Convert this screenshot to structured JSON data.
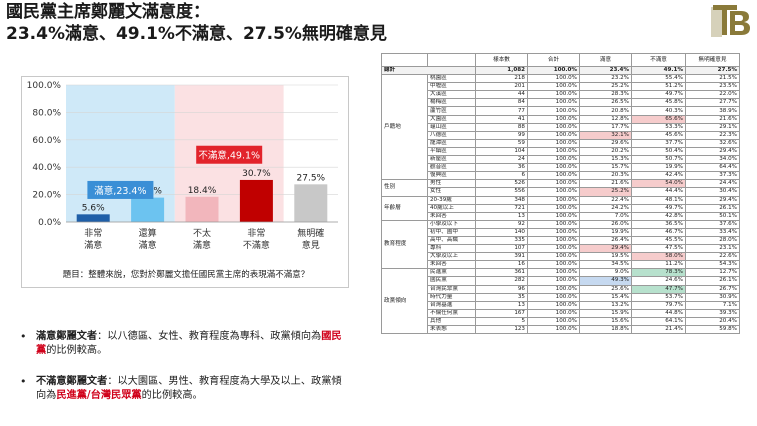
{
  "header": {
    "title_line1": "國民黨主席鄭麗文滿意度：",
    "title_line2": "23.4%滿意、49.1%不滿意、27.5%無明確意見"
  },
  "logo": {
    "text": "TB",
    "color": "#8a7a3a"
  },
  "chart_data": {
    "type": "bar",
    "categories": [
      "非常\n滿意",
      "還算\n滿意",
      "不太\n滿意",
      "非常\n不滿意",
      "無明確\n意見"
    ],
    "values": [
      5.6,
      17.8,
      18.4,
      30.7,
      27.5
    ],
    "value_labels": [
      "5.6%",
      "17.8%",
      "18.4%",
      "30.7%",
      "27.5%"
    ],
    "colors": [
      "#1f5fa8",
      "#6cc3f0",
      "#f2b6bc",
      "#c00000",
      "#c8c8c8"
    ],
    "ylim": [
      0,
      100
    ],
    "yticks": [
      "0.0%",
      "20.0%",
      "40.0%",
      "60.0%",
      "80.0%",
      "100.0%"
    ],
    "ytick_values": [
      0,
      20,
      40,
      60,
      80,
      100
    ],
    "groups": [
      {
        "label": "滿意,23.4%",
        "value": 23.4,
        "span": [
          0,
          1
        ],
        "bg": "#cfe9f8",
        "label_bg": "#3a8fd6"
      },
      {
        "label": "不滿意,49.1%",
        "value": 49.1,
        "span": [
          2,
          3
        ],
        "bg": "#fbe1e3",
        "label_bg": "#e2232b"
      }
    ],
    "question": "題目：整體來說，您對於鄭麗文擔任國民黨主席的表現滿不滿意？"
  },
  "bullets": [
    {
      "head": "滿意鄭麗文者",
      "text_a": "：以八德區、女性、教育程度為專科、政黨傾向為",
      "emph": "國民黨",
      "text_b": "的比例較高。"
    },
    {
      "head": "不滿意鄭麗文者",
      "text_a": "：以大園區、男性、教育程度為大學及以上、政黨傾向為",
      "emph": "民進黨/台灣民眾黨",
      "text_b": "的比例較高。"
    }
  ],
  "table": {
    "headers": [
      "",
      "",
      "樣本數",
      "合計",
      "滿意",
      "不滿意",
      "無明確意見"
    ],
    "total": {
      "label": "總計",
      "values": [
        "1,082",
        "100.0%",
        "23.4%",
        "49.1%",
        "27.5%"
      ]
    },
    "groups": [
      {
        "name": "戶籍地",
        "rows": [
          {
            "label": "桃園區",
            "values": [
              "218",
              "100.0%",
              "23.2%",
              "55.4%",
              "21.5%"
            ],
            "hl": [
              "",
              "",
              "",
              "",
              ""
            ]
          },
          {
            "label": "中壢區",
            "values": [
              "201",
              "100.0%",
              "25.2%",
              "51.2%",
              "23.5%"
            ],
            "hl": [
              "",
              "",
              "",
              "",
              ""
            ]
          },
          {
            "label": "大溪區",
            "values": [
              "44",
              "100.0%",
              "28.3%",
              "49.7%",
              "22.0%"
            ],
            "hl": [
              "",
              "",
              "",
              "",
              ""
            ]
          },
          {
            "label": "楊梅區",
            "values": [
              "84",
              "100.0%",
              "26.5%",
              "45.8%",
              "27.7%"
            ],
            "hl": [
              "",
              "",
              "",
              "",
              ""
            ]
          },
          {
            "label": "蘆竹區",
            "values": [
              "77",
              "100.0%",
              "20.8%",
              "40.3%",
              "38.9%"
            ],
            "hl": [
              "",
              "",
              "",
              "",
              ""
            ]
          },
          {
            "label": "大園區",
            "values": [
              "41",
              "100.0%",
              "12.8%",
              "65.6%",
              "21.6%"
            ],
            "hl": [
              "",
              "",
              "",
              "red",
              ""
            ]
          },
          {
            "label": "龜山區",
            "values": [
              "88",
              "100.0%",
              "17.7%",
              "53.3%",
              "29.1%"
            ],
            "hl": [
              "",
              "",
              "",
              "",
              ""
            ]
          },
          {
            "label": "八德區",
            "values": [
              "99",
              "100.0%",
              "32.1%",
              "45.6%",
              "22.3%"
            ],
            "hl": [
              "",
              "",
              "red",
              "",
              ""
            ]
          },
          {
            "label": "龍潭區",
            "values": [
              "59",
              "100.0%",
              "29.6%",
              "37.7%",
              "32.6%"
            ],
            "hl": [
              "",
              "",
              "",
              "",
              ""
            ]
          },
          {
            "label": "平鎮區",
            "values": [
              "104",
              "100.0%",
              "20.2%",
              "50.4%",
              "29.4%"
            ],
            "hl": [
              "",
              "",
              "",
              "",
              ""
            ]
          },
          {
            "label": "新屋區",
            "values": [
              "24",
              "100.0%",
              "15.3%",
              "50.7%",
              "34.0%"
            ],
            "hl": [
              "",
              "",
              "",
              "",
              ""
            ]
          },
          {
            "label": "觀音區",
            "values": [
              "36",
              "100.0%",
              "15.7%",
              "19.9%",
              "64.4%"
            ],
            "hl": [
              "",
              "",
              "",
              "",
              ""
            ]
          },
          {
            "label": "復興區",
            "values": [
              "6",
              "100.0%",
              "20.3%",
              "42.4%",
              "37.3%"
            ],
            "hl": [
              "",
              "",
              "",
              "",
              ""
            ]
          }
        ]
      },
      {
        "name": "性別",
        "rows": [
          {
            "label": "男性",
            "values": [
              "526",
              "100.0%",
              "21.6%",
              "54.0%",
              "24.4%"
            ],
            "hl": [
              "",
              "",
              "",
              "red",
              ""
            ]
          },
          {
            "label": "女性",
            "values": [
              "556",
              "100.0%",
              "25.2%",
              "44.4%",
              "30.4%"
            ],
            "hl": [
              "",
              "",
              "red",
              "",
              ""
            ]
          }
        ]
      },
      {
        "name": "年齡層",
        "rows": [
          {
            "label": "20-39歲",
            "values": [
              "348",
              "100.0%",
              "22.4%",
              "48.1%",
              "29.4%"
            ],
            "hl": [
              "",
              "",
              "",
              "",
              ""
            ]
          },
          {
            "label": "40歲以上",
            "values": [
              "721",
              "100.0%",
              "24.2%",
              "49.7%",
              "26.1%"
            ],
            "hl": [
              "",
              "",
              "",
              "",
              ""
            ]
          },
          {
            "label": "未回答",
            "values": [
              "13",
              "100.0%",
              "7.0%",
              "42.8%",
              "50.1%"
            ],
            "hl": [
              "",
              "",
              "",
              "",
              ""
            ]
          }
        ]
      },
      {
        "name": "教育程度",
        "rows": [
          {
            "label": "小學及以下",
            "values": [
              "92",
              "100.0%",
              "26.0%",
              "36.5%",
              "37.6%"
            ],
            "hl": [
              "",
              "",
              "",
              "",
              ""
            ]
          },
          {
            "label": "初中、國中",
            "values": [
              "140",
              "100.0%",
              "19.9%",
              "46.7%",
              "33.4%"
            ],
            "hl": [
              "",
              "",
              "",
              "",
              ""
            ]
          },
          {
            "label": "高中、高職",
            "values": [
              "335",
              "100.0%",
              "26.4%",
              "45.5%",
              "28.0%"
            ],
            "hl": [
              "",
              "",
              "",
              "",
              ""
            ]
          },
          {
            "label": "專科",
            "values": [
              "107",
              "100.0%",
              "29.4%",
              "47.5%",
              "23.1%"
            ],
            "hl": [
              "",
              "",
              "red",
              "",
              ""
            ]
          },
          {
            "label": "大學及以上",
            "values": [
              "391",
              "100.0%",
              "19.5%",
              "58.0%",
              "22.6%"
            ],
            "hl": [
              "",
              "",
              "",
              "red",
              ""
            ]
          },
          {
            "label": "未回答",
            "values": [
              "16",
              "100.0%",
              "34.5%",
              "11.2%",
              "54.3%"
            ],
            "hl": [
              "",
              "",
              "",
              "",
              ""
            ]
          }
        ]
      },
      {
        "name": "政黨傾向",
        "rows": [
          {
            "label": "民進黨",
            "values": [
              "361",
              "100.0%",
              "9.0%",
              "78.3%",
              "12.7%"
            ],
            "hl": [
              "",
              "",
              "",
              "green",
              ""
            ]
          },
          {
            "label": "國民黨",
            "values": [
              "282",
              "100.0%",
              "49.3%",
              "24.6%",
              "26.1%"
            ],
            "hl": [
              "",
              "",
              "blue",
              "",
              ""
            ]
          },
          {
            "label": "台灣民眾黨",
            "values": [
              "96",
              "100.0%",
              "25.6%",
              "47.7%",
              "26.7%"
            ],
            "hl": [
              "",
              "",
              "",
              "green",
              ""
            ]
          },
          {
            "label": "時代力量",
            "values": [
              "35",
              "100.0%",
              "15.4%",
              "53.7%",
              "30.9%"
            ],
            "hl": [
              "",
              "",
              "",
              "",
              ""
            ]
          },
          {
            "label": "台灣基進",
            "values": [
              "13",
              "100.0%",
              "13.2%",
              "79.7%",
              "7.1%"
            ],
            "hl": [
              "",
              "",
              "",
              "",
              ""
            ]
          },
          {
            "label": "不偏任何黨",
            "values": [
              "167",
              "100.0%",
              "15.9%",
              "44.8%",
              "39.3%"
            ],
            "hl": [
              "",
              "",
              "",
              "",
              ""
            ]
          },
          {
            "label": "其他",
            "values": [
              "5",
              "100.0%",
              "15.6%",
              "64.1%",
              "20.4%"
            ],
            "hl": [
              "",
              "",
              "",
              "",
              ""
            ]
          },
          {
            "label": "未表態",
            "values": [
              "123",
              "100.0%",
              "18.8%",
              "21.4%",
              "59.8%"
            ],
            "hl": [
              "",
              "",
              "",
              "",
              ""
            ]
          }
        ]
      }
    ]
  }
}
